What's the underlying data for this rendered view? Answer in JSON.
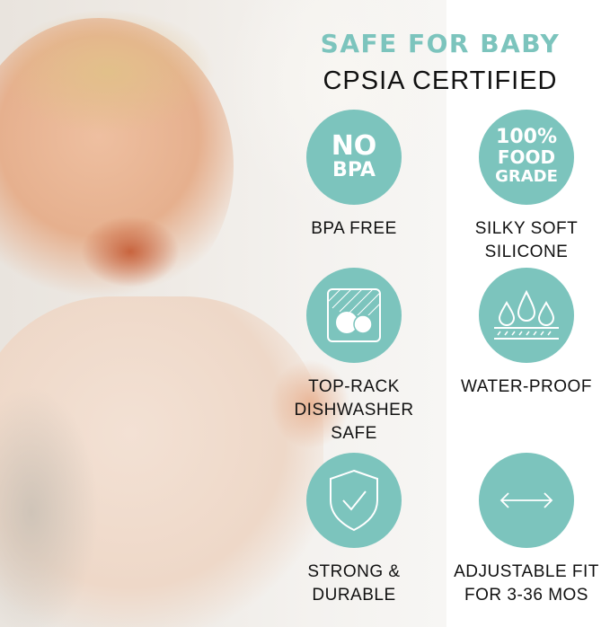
{
  "header": {
    "title": "SAFE FOR BABY",
    "subtitle": "CPSIA CERTIFIED"
  },
  "accent_color": "#7cc4bd",
  "features": [
    {
      "icon": "no-bpa-badge",
      "badge_lines": [
        "NO",
        "BPA"
      ],
      "label_lines": [
        "BPA FREE"
      ]
    },
    {
      "icon": "food-grade-badge",
      "badge_lines": [
        "100%",
        "FOOD",
        "GRADE"
      ],
      "label_lines": [
        "SILKY SOFT",
        "SILICONE"
      ]
    },
    {
      "icon": "dishwasher-icon",
      "label_lines": [
        "TOP-RACK",
        "DISHWASHER",
        "SAFE"
      ]
    },
    {
      "icon": "water-drops-icon",
      "label_lines": [
        "WATER-PROOF"
      ]
    },
    {
      "icon": "shield-check-icon",
      "label_lines": [
        "STRONG &",
        "DURABLE"
      ]
    },
    {
      "icon": "double-arrow-icon",
      "label_lines": [
        "ADJUSTABLE FIT",
        "FOR 3-36 MOS"
      ]
    }
  ]
}
